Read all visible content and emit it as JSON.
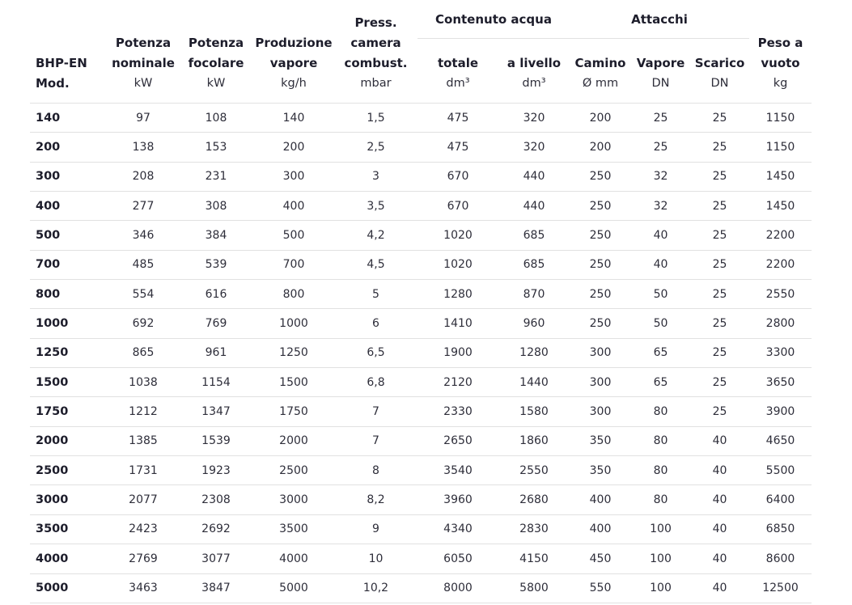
{
  "colors": {
    "heading_text": "#1d1d2b",
    "body_text": "#2e2e3a",
    "divider": "#e1e1e1",
    "background": "#ffffff"
  },
  "table": {
    "groups": [
      {
        "label": "Contenuto acqua"
      },
      {
        "label": "Attacchi"
      }
    ],
    "columns": [
      {
        "line1": "BHP-EN",
        "line2": "Mod."
      },
      {
        "line1": "Potenza",
        "line2": "nominale",
        "unit": "kW"
      },
      {
        "line1": "Potenza",
        "line2": "focolare",
        "unit": "kW"
      },
      {
        "line1": "Produzione",
        "line2": "vapore",
        "unit": "kg/h"
      },
      {
        "line1": "Press.",
        "line2": "camera",
        "line3": "combust.",
        "unit": "mbar"
      },
      {
        "line1": "totale",
        "unit": "dm³"
      },
      {
        "line1": "a livello",
        "unit": "dm³"
      },
      {
        "line1": "Camino",
        "unit": "Ø mm"
      },
      {
        "line1": "Vapore",
        "unit": "DN"
      },
      {
        "line1": "Scarico",
        "unit": "DN"
      },
      {
        "line1": "Peso a",
        "line2": "vuoto",
        "unit": "kg"
      }
    ],
    "rows": [
      [
        "140",
        "97",
        "108",
        "140",
        "1,5",
        "475",
        "320",
        "200",
        "25",
        "25",
        "1150"
      ],
      [
        "200",
        "138",
        "153",
        "200",
        "2,5",
        "475",
        "320",
        "200",
        "25",
        "25",
        "1150"
      ],
      [
        "300",
        "208",
        "231",
        "300",
        "3",
        "670",
        "440",
        "250",
        "32",
        "25",
        "1450"
      ],
      [
        "400",
        "277",
        "308",
        "400",
        "3,5",
        "670",
        "440",
        "250",
        "32",
        "25",
        "1450"
      ],
      [
        "500",
        "346",
        "384",
        "500",
        "4,2",
        "1020",
        "685",
        "250",
        "40",
        "25",
        "2200"
      ],
      [
        "700",
        "485",
        "539",
        "700",
        "4,5",
        "1020",
        "685",
        "250",
        "40",
        "25",
        "2200"
      ],
      [
        "800",
        "554",
        "616",
        "800",
        "5",
        "1280",
        "870",
        "250",
        "50",
        "25",
        "2550"
      ],
      [
        "1000",
        "692",
        "769",
        "1000",
        "6",
        "1410",
        "960",
        "250",
        "50",
        "25",
        "2800"
      ],
      [
        "1250",
        "865",
        "961",
        "1250",
        "6,5",
        "1900",
        "1280",
        "300",
        "65",
        "25",
        "3300"
      ],
      [
        "1500",
        "1038",
        "1154",
        "1500",
        "6,8",
        "2120",
        "1440",
        "300",
        "65",
        "25",
        "3650"
      ],
      [
        "1750",
        "1212",
        "1347",
        "1750",
        "7",
        "2330",
        "1580",
        "300",
        "80",
        "25",
        "3900"
      ],
      [
        "2000",
        "1385",
        "1539",
        "2000",
        "7",
        "2650",
        "1860",
        "350",
        "80",
        "40",
        "4650"
      ],
      [
        "2500",
        "1731",
        "1923",
        "2500",
        "8",
        "3540",
        "2550",
        "350",
        "80",
        "40",
        "5500"
      ],
      [
        "3000",
        "2077",
        "2308",
        "3000",
        "8,2",
        "3960",
        "2680",
        "400",
        "80",
        "40",
        "6400"
      ],
      [
        "3500",
        "2423",
        "2692",
        "3500",
        "9",
        "4340",
        "2830",
        "400",
        "100",
        "40",
        "6850"
      ],
      [
        "4000",
        "2769",
        "3077",
        "4000",
        "10",
        "6050",
        "4150",
        "450",
        "100",
        "40",
        "8600"
      ],
      [
        "5000",
        "3463",
        "3847",
        "5000",
        "10,2",
        "8000",
        "5800",
        "550",
        "100",
        "40",
        "12500"
      ]
    ]
  }
}
